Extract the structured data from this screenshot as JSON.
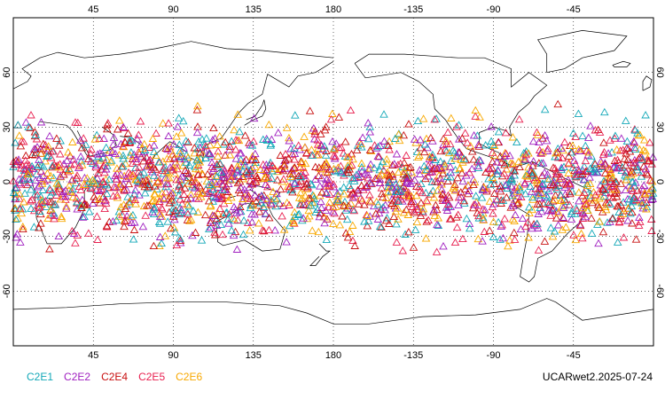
{
  "map": {
    "lon_labels": [
      "45",
      "90",
      "135",
      "180",
      "-135",
      "-90",
      "-45"
    ],
    "lon_values": [
      45,
      90,
      135,
      180,
      225,
      270,
      315
    ],
    "lat_labels": [
      "60",
      "30",
      "0",
      "-30",
      "-60"
    ],
    "lat_values": [
      60,
      30,
      0,
      -30,
      -60
    ],
    "lon_range": [
      0,
      360
    ],
    "lat_range": [
      -90,
      90
    ],
    "grid": true,
    "marker": "open-triangle",
    "occultation_lat_band": [
      -45,
      45
    ]
  },
  "legend": [
    {
      "label": "C2E1",
      "color": "#13a8b8"
    },
    {
      "label": "C2E2",
      "color": "#a020c0"
    },
    {
      "label": "C2E4",
      "color": "#c81010"
    },
    {
      "label": "C2E5",
      "color": "#e82050"
    },
    {
      "label": "C2E6",
      "color": "#f8a800"
    }
  ],
  "credit": "UCARwet2.2025-07-24"
}
